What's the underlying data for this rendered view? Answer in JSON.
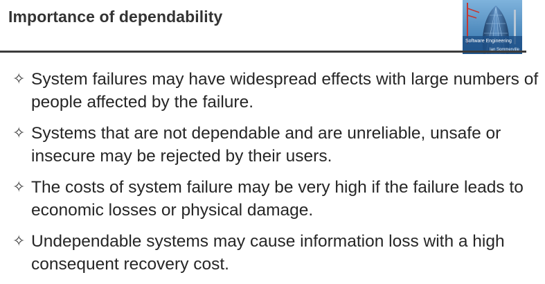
{
  "slide": {
    "title": "Importance of dependability",
    "cover": {
      "book_title": "Software Engineering",
      "author": "Ian Sommerville"
    },
    "bullet_icon": "four-pointed-star-icon",
    "bullets": [
      "System failures may have widespread effects with large numbers of people affected by the failure.",
      "Systems that are not dependable and are unreliable, unsafe or insecure may be rejected by their users.",
      "The costs of system failure may be very high if the failure leads to economic losses or physical damage.",
      "Undependable systems may cause information loss with a high consequent recovery cost."
    ]
  }
}
